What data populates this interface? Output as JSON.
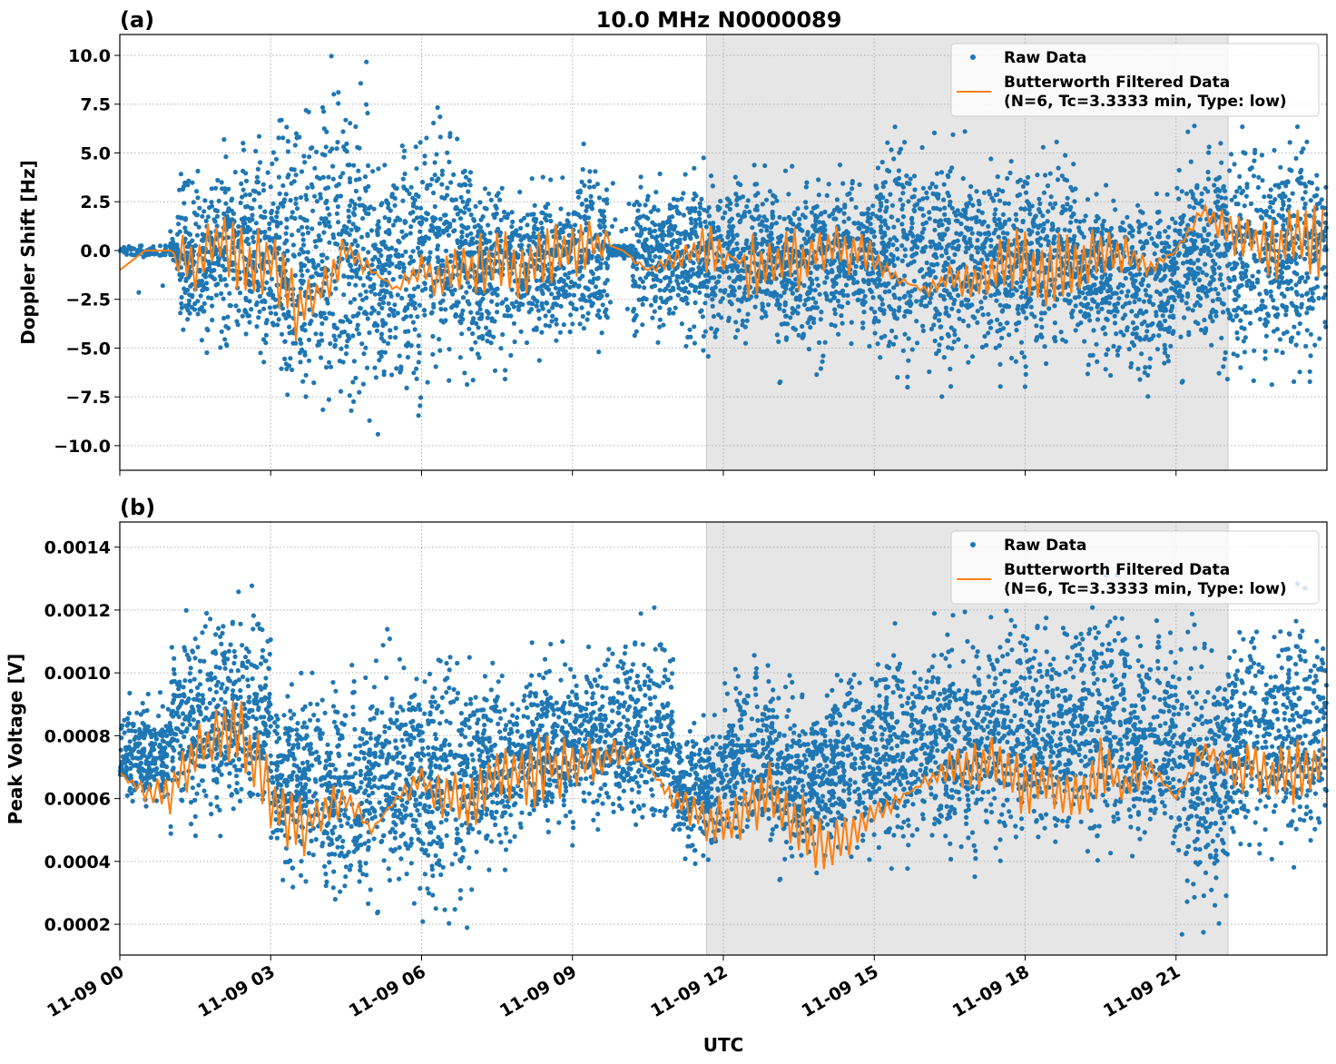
{
  "chart_data": [
    {
      "type": "scatter+line",
      "panel_label": "(a)",
      "title": "10.0 MHz N0000089",
      "ylabel": "Doppler Shift [Hz]",
      "xlabel": "",
      "ylim": [
        -11.26,
        11.07
      ],
      "yticks": [
        10.0,
        7.5,
        5.0,
        2.5,
        0.0,
        -2.5,
        -5.0,
        -7.5,
        -10.0
      ],
      "ytick_labels": [
        "10.0",
        "7.5",
        "5.0",
        "2.5",
        "0.0",
        "−2.5",
        "−5.0",
        "−7.5",
        "−10.0"
      ],
      "grid": true,
      "shaded_span_utc": [
        "11-09 11:40",
        "11-09 22:02"
      ],
      "legend": {
        "placement": "top-right",
        "entries": [
          "Raw Data",
          "Butterworth Filtered Data\n(N=6, Tc=3.3333 min, Type: low)"
        ]
      },
      "legend_lines": [
        "Raw Data",
        "Butterworth Filtered Data",
        "(N=6, Tc=3.3333 min, Type: low)"
      ],
      "series": [
        {
          "name": "Raw Data",
          "kind": "scatter",
          "color": "#1f77b4",
          "hourly_range_utc_hours": [
            0,
            1,
            2,
            3,
            4,
            5,
            6,
            7,
            8,
            9,
            10,
            11,
            12,
            13,
            14,
            15,
            16,
            17,
            18,
            19,
            20,
            21,
            22,
            23
          ],
          "min": [
            -4,
            -5.5,
            -6.5,
            -9,
            -10.2,
            -9.8,
            -7,
            -7,
            -6,
            -6,
            -5,
            -6,
            -5,
            -7,
            -5,
            -7.5,
            -8,
            -7,
            -6.5,
            -7,
            -7.8,
            -7,
            -7,
            -7.2
          ],
          "max": [
            0.3,
            4.2,
            6,
            8.2,
            10,
            7,
            7.5,
            4,
            4,
            5.6,
            4,
            5.5,
            5,
            4.8,
            4.5,
            6.7,
            6.5,
            5,
            5.6,
            4,
            3.5,
            7,
            6.5,
            6.7
          ]
        },
        {
          "name": "Butterworth Filtered Data",
          "kind": "line",
          "color": "#ff7f0e",
          "step_minutes": 30,
          "values": [
            -1,
            0,
            0,
            -1,
            1,
            -1,
            -0.5,
            -3,
            -2,
            0,
            -1,
            -2,
            -1,
            -1.5,
            -1,
            -0.5,
            -0.5,
            -0.5,
            0,
            0.5,
            0,
            -1,
            -0.5,
            0,
            0,
            -1,
            -1,
            -0.5,
            0,
            0,
            -0.5,
            -1.5,
            -2,
            -1.5,
            -1.5,
            -1,
            -0.5,
            -1,
            -0.5,
            -0.5,
            0,
            -1,
            0,
            2,
            1,
            0.5,
            0,
            0.5
          ]
        }
      ]
    },
    {
      "type": "scatter+line",
      "panel_label": "(b)",
      "ylabel": "Peak Voltage [V]",
      "xlabel": "UTC",
      "ylim": [
        0.000102,
        0.00148
      ],
      "yticks": [
        0.0014,
        0.0012,
        0.001,
        0.0008,
        0.0006,
        0.0004,
        0.0002
      ],
      "ytick_labels": [
        "0.0014",
        "0.0012",
        "0.0010",
        "0.0008",
        "0.0006",
        "0.0004",
        "0.0002"
      ],
      "xticks_utc_hours": [
        0,
        3,
        6,
        9,
        12,
        15,
        18,
        21
      ],
      "xtick_labels": [
        "11-09 00",
        "11-09 03",
        "11-09 06",
        "11-09 09",
        "11-09 12",
        "11-09 15",
        "11-09 18",
        "11-09 21"
      ],
      "xlim_utc_hours": [
        0,
        24
      ],
      "grid": true,
      "shaded_span_utc": [
        "11-09 11:40",
        "11-09 22:02"
      ],
      "legend": {
        "placement": "top-right",
        "entries": [
          "Raw Data",
          "Butterworth Filtered Data\n(N=6, Tc=3.3333 min, Type: low)"
        ]
      },
      "legend_lines": [
        "Raw Data",
        "Butterworth Filtered Data",
        "(N=6, Tc=3.3333 min, Type: low)"
      ],
      "series": [
        {
          "name": "Raw Data",
          "kind": "scatter",
          "color": "#1f77b4",
          "min": [
            0.00055,
            0.00048,
            0.0005,
            0.0003,
            0.0002,
            0.00022,
            0.00018,
            0.00035,
            0.00045,
            0.0005,
            0.00045,
            0.00038,
            0.00042,
            0.00033,
            0.0004,
            0.00035,
            0.00035,
            0.0004,
            0.0004,
            0.00038,
            0.0004,
            0.00015,
            0.0004,
            0.00035
          ],
          "max": [
            0.00095,
            0.00122,
            0.00128,
            0.00105,
            0.00108,
            0.00115,
            0.00115,
            0.00105,
            0.00112,
            0.0011,
            0.00121,
            0.0009,
            0.0011,
            0.001,
            0.00105,
            0.00118,
            0.00122,
            0.0012,
            0.00128,
            0.00138,
            0.00122,
            0.0012,
            0.0012,
            0.00131
          ]
        },
        {
          "name": "Butterworth Filtered Data",
          "kind": "line",
          "color": "#ff7f0e",
          "step_minutes": 30,
          "values": [
            0.00068,
            0.00062,
            0.00062,
            0.00075,
            0.00078,
            0.0008,
            0.0006,
            0.0005,
            0.00055,
            0.0006,
            0.0005,
            0.0006,
            0.00065,
            0.0006,
            0.0006,
            0.0007,
            0.00068,
            0.0007,
            0.0007,
            0.00072,
            0.00075,
            0.0007,
            0.0006,
            0.00055,
            0.00052,
            0.0006,
            0.0006,
            0.0005,
            0.00045,
            0.0005,
            0.00055,
            0.0006,
            0.00065,
            0.0007,
            0.0007,
            0.0007,
            0.00065,
            0.00065,
            0.0006,
            0.0007,
            0.00065,
            0.0007,
            0.0006,
            0.00075,
            0.0007,
            0.0007,
            0.00065,
            0.0007
          ]
        }
      ]
    }
  ]
}
